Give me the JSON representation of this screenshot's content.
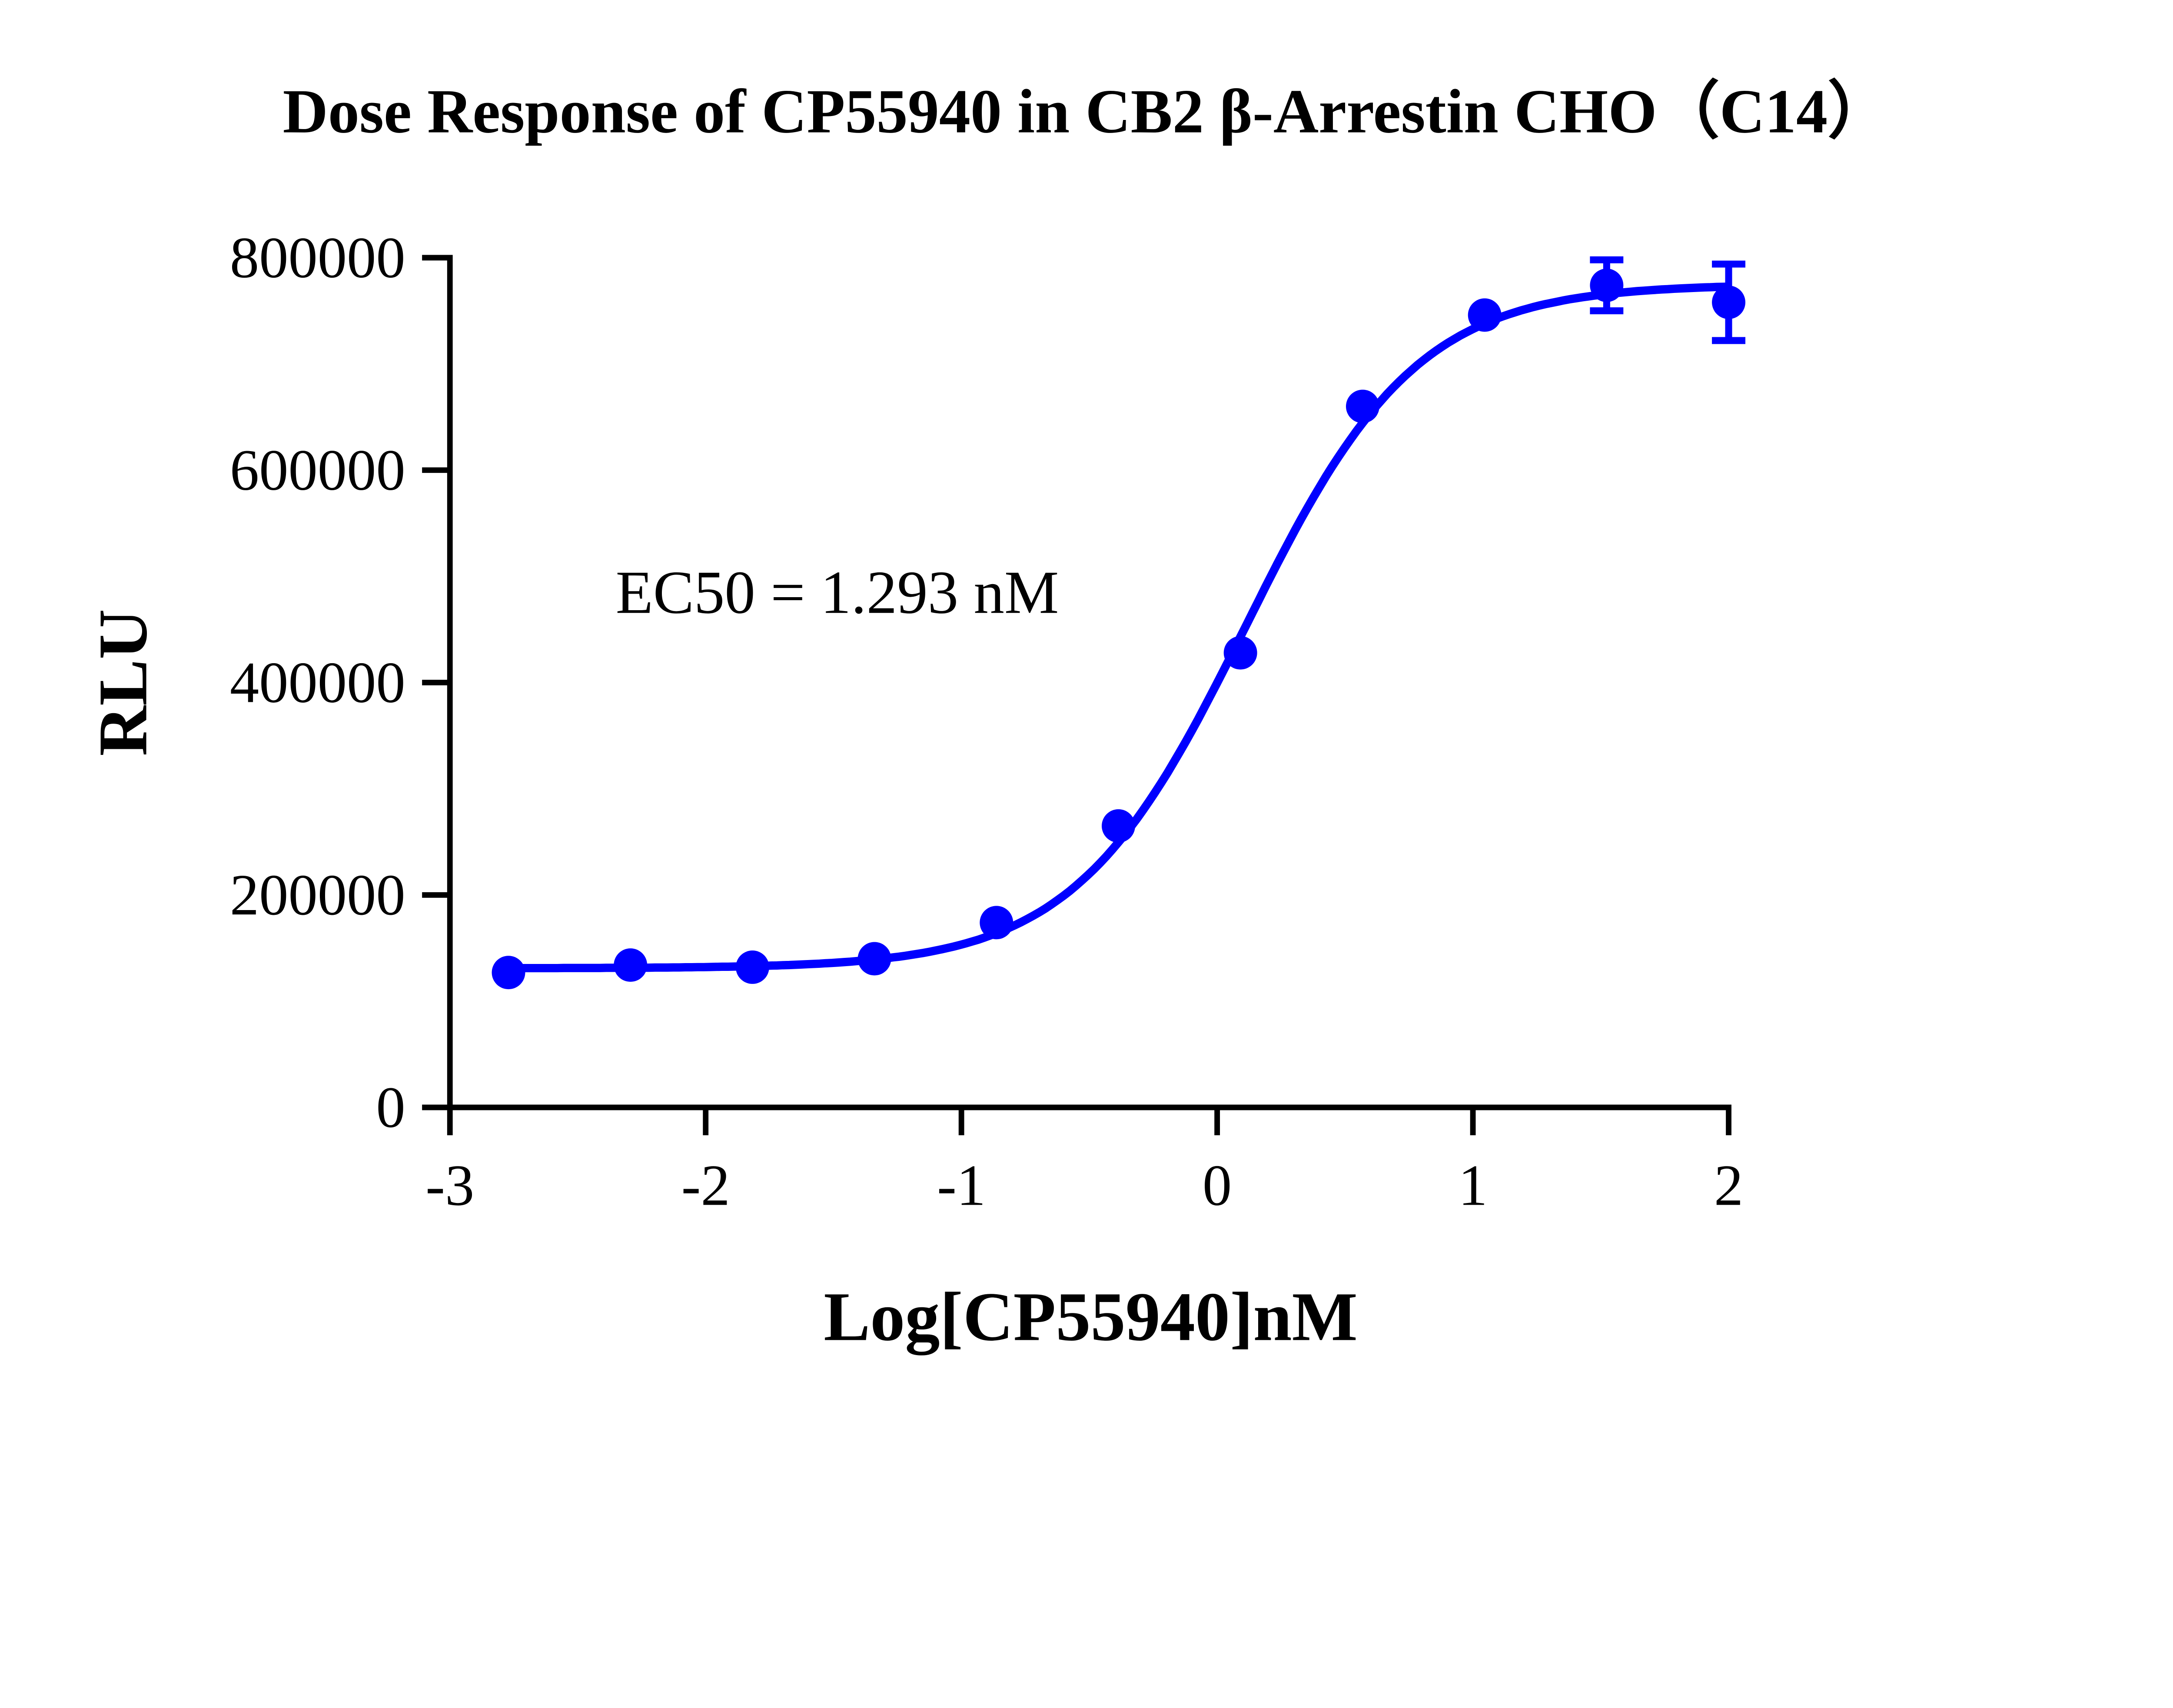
{
  "chart_data": {
    "type": "scatter",
    "title": "Dose Response of CP55940 in CB2 β-Arrestin CHO（C14）",
    "xlabel": "Log[CP55940]nM",
    "ylabel": "RLU",
    "xlim": [
      -3,
      2
    ],
    "ylim": [
      0,
      800000
    ],
    "xticks": [
      "-3",
      "-2",
      "-1",
      "0",
      "1",
      "2"
    ],
    "yticks": [
      "0",
      "200000",
      "400000",
      "600000",
      "800000"
    ],
    "grid": false,
    "color": "#0000ff",
    "annotation": "EC50 = 1.293 nM",
    "series": [
      {
        "x": [
          -2.771,
          -2.294,
          -1.817,
          -1.34,
          -0.863,
          -0.386,
          0.091,
          0.569,
          1.046,
          1.523,
          2.0
        ],
        "y": [
          127000,
          134000,
          132000,
          140000,
          174000,
          265000,
          428000,
          660000,
          746000,
          774000,
          758000
        ],
        "error": [
          0,
          0,
          0,
          0,
          0,
          0,
          0,
          0,
          0,
          24000,
          36000
        ]
      }
    ]
  }
}
